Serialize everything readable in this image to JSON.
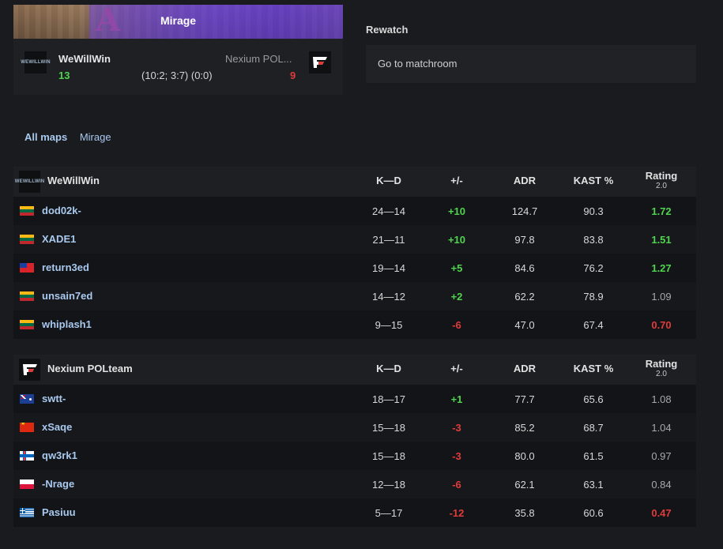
{
  "match_card": {
    "map_name": "Mirage",
    "team1": {
      "name": "WeWillWin",
      "score": "13",
      "logo_text": "WEWILLWIN"
    },
    "team2": {
      "name": "Nexium POL...",
      "score": "9"
    },
    "half_scores": "(10:2; 3:7) (0:0)"
  },
  "rewatch": {
    "title": "Rewatch",
    "button_label": "Go to matchroom"
  },
  "map_tabs": {
    "all_maps": "All maps",
    "current": "Mirage"
  },
  "columns": {
    "kd": "K—D",
    "plus_minus": "+/-",
    "adr": "ADR",
    "kast": "KAST %",
    "rating": "Rating",
    "rating_version": "2.0"
  },
  "teams": [
    {
      "name": "WeWillWin",
      "logo_text": "WEWILLWIN",
      "players": [
        {
          "name": "dod02k-",
          "flag": "lithuania-flag",
          "kd": "24—14",
          "pm": "+10",
          "adr": "124.7",
          "kast": "90.3",
          "rating": "1.72"
        },
        {
          "name": "XADE1",
          "flag": "lithuania-flag",
          "kd": "21—11",
          "pm": "+10",
          "adr": "97.8",
          "kast": "83.8",
          "rating": "1.51"
        },
        {
          "name": "return3ed",
          "flag": "taiwan-flag",
          "kd": "19—14",
          "pm": "+5",
          "adr": "84.6",
          "kast": "76.2",
          "rating": "1.27"
        },
        {
          "name": "unsain7ed",
          "flag": "lithuania-flag",
          "kd": "14—12",
          "pm": "+2",
          "adr": "62.2",
          "kast": "78.9",
          "rating": "1.09"
        },
        {
          "name": "whiplash1",
          "flag": "lithuania-flag",
          "kd": "9—15",
          "pm": "-6",
          "adr": "47.0",
          "kast": "67.4",
          "rating": "0.70"
        }
      ]
    },
    {
      "name": "Nexium POLteam",
      "players": [
        {
          "name": "swtt-",
          "flag": "australia-flag",
          "kd": "18—17",
          "pm": "+1",
          "adr": "77.7",
          "kast": "65.6",
          "rating": "1.08"
        },
        {
          "name": "xSaqe",
          "flag": "china-flag",
          "kd": "15—18",
          "pm": "-3",
          "adr": "85.2",
          "kast": "68.7",
          "rating": "1.04"
        },
        {
          "name": "qw3rk1",
          "flag": "faroe-islands-flag",
          "kd": "15—18",
          "pm": "-3",
          "adr": "80.0",
          "kast": "61.5",
          "rating": "0.97"
        },
        {
          "name": "-Nrage",
          "flag": "poland-flag",
          "kd": "12—18",
          "pm": "-6",
          "adr": "62.1",
          "kast": "63.1",
          "rating": "0.84"
        },
        {
          "name": "Pasiuu",
          "flag": "greece-flag",
          "kd": "5—17",
          "pm": "-12",
          "adr": "35.8",
          "kast": "60.6",
          "rating": "0.47"
        }
      ]
    }
  ],
  "colors": {
    "positive": "#4fd44f",
    "negative": "#e03b3b",
    "player_link": "#a9c9ef",
    "background": "#1a1b1e"
  }
}
